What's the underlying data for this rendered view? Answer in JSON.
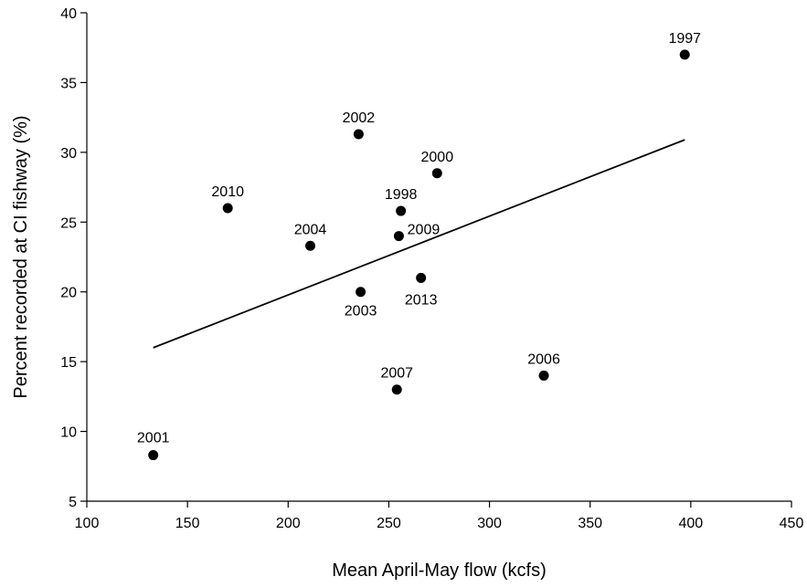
{
  "chart_data": {
    "type": "scatter",
    "xlabel": "Mean April-May flow (kcfs)",
    "ylabel": "Percent recorded at CI fishway (%)",
    "xlim": [
      100,
      450
    ],
    "ylim": [
      5,
      40
    ],
    "xticks": [
      100,
      150,
      200,
      250,
      300,
      350,
      400,
      450
    ],
    "yticks": [
      5,
      10,
      15,
      20,
      25,
      30,
      35,
      40
    ],
    "grid": false,
    "points": [
      {
        "label": "1997",
        "x": 397,
        "y": 37.0
      },
      {
        "label": "1998",
        "x": 256,
        "y": 25.8
      },
      {
        "label": "2000",
        "x": 274,
        "y": 28.5
      },
      {
        "label": "2001",
        "x": 133,
        "y": 8.3
      },
      {
        "label": "2002",
        "x": 235,
        "y": 31.3
      },
      {
        "label": "2003",
        "x": 236,
        "y": 20.0
      },
      {
        "label": "2004",
        "x": 211,
        "y": 23.3
      },
      {
        "label": "2006",
        "x": 327,
        "y": 14.0
      },
      {
        "label": "2007",
        "x": 254,
        "y": 13.0
      },
      {
        "label": "2009",
        "x": 255,
        "y": 24.0
      },
      {
        "label": "2010",
        "x": 170,
        "y": 26.0
      },
      {
        "label": "2013",
        "x": 266,
        "y": 21.0
      }
    ],
    "trendline": {
      "x": [
        133,
        397
      ],
      "y": [
        16.0,
        30.9
      ]
    }
  }
}
